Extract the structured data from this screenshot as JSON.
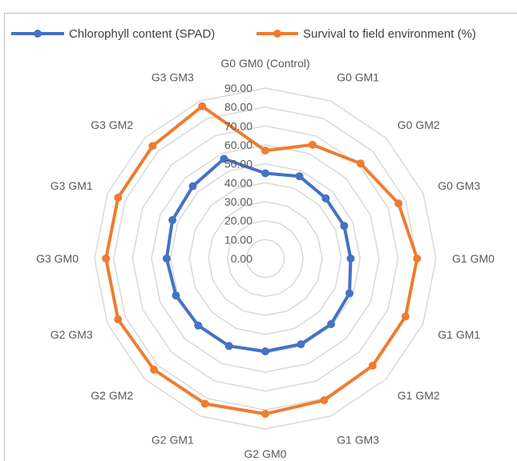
{
  "chart_data": {
    "type": "radar",
    "title": "",
    "categories": [
      "G0 GM0 (Control)",
      "G0 GM1",
      "G0 GM2",
      "G0 GM3",
      "G1 GM0",
      "G1 GM1",
      "G1 GM2",
      "G1 GM3",
      "G2 GM0",
      "G2 GM1",
      "G2 GM2",
      "G2 GM3",
      "G3 GM0",
      "G3 GM1",
      "G3 GM2",
      "G3 GM3"
    ],
    "ticks": [
      "0.00",
      "10.00",
      "20.00",
      "30.00",
      "40.00",
      "50.00",
      "60.00",
      "70.00",
      "80.00",
      "90.00"
    ],
    "rlim": [
      0,
      90
    ],
    "grid": true,
    "legend_position": "top",
    "series": [
      {
        "name": "Chlorophyll content (SPAD)",
        "color": "#4472c4",
        "values": [
          45,
          47,
          45,
          45,
          45,
          48,
          49,
          49,
          49,
          50,
          50,
          51,
          52,
          53,
          54,
          57
        ]
      },
      {
        "name": "Survival to field environment (%)",
        "color": "#ed7d31",
        "values": [
          57,
          65,
          71,
          76,
          80,
          80,
          80,
          81,
          82,
          83,
          83,
          84,
          84,
          84,
          84,
          87
        ]
      }
    ]
  }
}
